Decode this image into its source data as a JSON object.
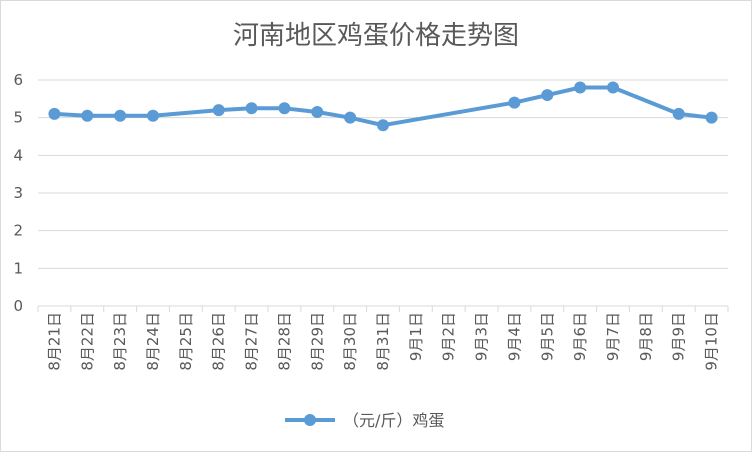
{
  "chart_data": {
    "type": "line",
    "title": "河南地区鸡蛋价格走势图",
    "categories": [
      "8月21日",
      "8月22日",
      "8月23日",
      "8月24日",
      "8月25日",
      "8月26日",
      "8月27日",
      "8月28日",
      "8月29日",
      "8月30日",
      "8月31日",
      "9月1日",
      "9月2日",
      "9月3日",
      "9月4日",
      "9月5日",
      "9月6日",
      "9月7日",
      "9月8日",
      "9月9日",
      "9月10日"
    ],
    "series": [
      {
        "name": "（元/斤）鸡蛋",
        "color": "#5b9bd5",
        "values": [
          5.1,
          5.05,
          5.05,
          5.05,
          null,
          5.2,
          5.25,
          5.25,
          5.15,
          5.0,
          4.8,
          null,
          null,
          null,
          5.4,
          5.6,
          5.8,
          5.8,
          null,
          5.1,
          5.0
        ]
      }
    ],
    "xlabel": "",
    "ylabel": "",
    "ylim": [
      0,
      6
    ],
    "yticks": [
      "0",
      "1",
      "2",
      "3",
      "4",
      "5",
      "6"
    ],
    "grid": true,
    "legend_position": "bottom"
  }
}
